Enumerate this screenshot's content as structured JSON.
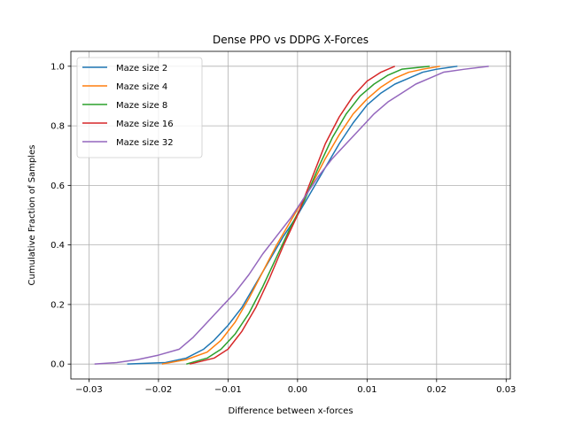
{
  "chart_data": {
    "type": "line",
    "title": "Dense PPO vs DDPG X-Forces",
    "xlabel": "Difference between x-forces",
    "ylabel": "Cumulative Fraction of Samples",
    "xlim": [
      -0.0326,
      0.0306
    ],
    "ylim": [
      -0.05,
      1.05
    ],
    "xticks": [
      -0.03,
      -0.02,
      -0.01,
      0.0,
      0.01,
      0.02,
      0.03
    ],
    "xtick_labels": [
      "−0.03",
      "−0.02",
      "−0.01",
      "0.00",
      "0.01",
      "0.02",
      "0.03"
    ],
    "yticks": [
      0.0,
      0.2,
      0.4,
      0.6,
      0.8,
      1.0
    ],
    "ytick_labels": [
      "0.0",
      "0.2",
      "0.4",
      "0.6",
      "0.8",
      "1.0"
    ],
    "grid": true,
    "legend_position": "upper-left",
    "series": [
      {
        "name": "Maze size 2",
        "color": "#1f77b4",
        "points": [
          [
            -0.0245,
            0.0
          ],
          [
            -0.019,
            0.005
          ],
          [
            -0.016,
            0.02
          ],
          [
            -0.0135,
            0.05
          ],
          [
            -0.012,
            0.08
          ],
          [
            -0.01,
            0.13
          ],
          [
            -0.008,
            0.19
          ],
          [
            -0.006,
            0.27
          ],
          [
            -0.004,
            0.35
          ],
          [
            -0.002,
            0.43
          ],
          [
            0.0,
            0.5
          ],
          [
            0.002,
            0.58
          ],
          [
            0.004,
            0.66
          ],
          [
            0.006,
            0.74
          ],
          [
            0.008,
            0.81
          ],
          [
            0.01,
            0.87
          ],
          [
            0.012,
            0.91
          ],
          [
            0.014,
            0.94
          ],
          [
            0.016,
            0.96
          ],
          [
            0.018,
            0.98
          ],
          [
            0.02,
            0.99
          ],
          [
            0.023,
            1.0
          ]
        ]
      },
      {
        "name": "Maze size 4",
        "color": "#ff7f0e",
        "points": [
          [
            -0.0195,
            0.0
          ],
          [
            -0.016,
            0.015
          ],
          [
            -0.013,
            0.04
          ],
          [
            -0.011,
            0.08
          ],
          [
            -0.009,
            0.14
          ],
          [
            -0.007,
            0.22
          ],
          [
            -0.005,
            0.31
          ],
          [
            -0.003,
            0.4
          ],
          [
            -0.001,
            0.48
          ],
          [
            0.0,
            0.52
          ],
          [
            0.002,
            0.6
          ],
          [
            0.004,
            0.69
          ],
          [
            0.006,
            0.77
          ],
          [
            0.008,
            0.84
          ],
          [
            0.01,
            0.89
          ],
          [
            0.012,
            0.93
          ],
          [
            0.014,
            0.96
          ],
          [
            0.016,
            0.98
          ],
          [
            0.018,
            0.99
          ],
          [
            0.0205,
            1.0
          ]
        ]
      },
      {
        "name": "Maze size 8",
        "color": "#2ca02c",
        "points": [
          [
            -0.016,
            0.0
          ],
          [
            -0.013,
            0.02
          ],
          [
            -0.011,
            0.05
          ],
          [
            -0.009,
            0.1
          ],
          [
            -0.007,
            0.17
          ],
          [
            -0.005,
            0.26
          ],
          [
            -0.003,
            0.36
          ],
          [
            -0.001,
            0.46
          ],
          [
            0.001,
            0.55
          ],
          [
            0.003,
            0.66
          ],
          [
            0.005,
            0.76
          ],
          [
            0.007,
            0.84
          ],
          [
            0.009,
            0.9
          ],
          [
            0.011,
            0.94
          ],
          [
            0.013,
            0.97
          ],
          [
            0.015,
            0.99
          ],
          [
            0.019,
            1.0
          ]
        ]
      },
      {
        "name": "Maze size 16",
        "color": "#d62728",
        "points": [
          [
            -0.0155,
            0.0
          ],
          [
            -0.012,
            0.02
          ],
          [
            -0.01,
            0.05
          ],
          [
            -0.008,
            0.11
          ],
          [
            -0.006,
            0.19
          ],
          [
            -0.004,
            0.29
          ],
          [
            -0.002,
            0.4
          ],
          [
            0.0,
            0.5
          ],
          [
            0.002,
            0.62
          ],
          [
            0.004,
            0.74
          ],
          [
            0.006,
            0.83
          ],
          [
            0.008,
            0.9
          ],
          [
            0.01,
            0.95
          ],
          [
            0.012,
            0.98
          ],
          [
            0.014,
            1.0
          ]
        ]
      },
      {
        "name": "Maze size 32",
        "color": "#9467bd",
        "points": [
          [
            -0.0292,
            0.0
          ],
          [
            -0.026,
            0.005
          ],
          [
            -0.023,
            0.015
          ],
          [
            -0.02,
            0.03
          ],
          [
            -0.017,
            0.05
          ],
          [
            -0.015,
            0.09
          ],
          [
            -0.013,
            0.14
          ],
          [
            -0.011,
            0.19
          ],
          [
            -0.009,
            0.24
          ],
          [
            -0.007,
            0.3
          ],
          [
            -0.005,
            0.37
          ],
          [
            -0.003,
            0.43
          ],
          [
            -0.001,
            0.49
          ],
          [
            0.001,
            0.56
          ],
          [
            0.003,
            0.63
          ],
          [
            0.005,
            0.69
          ],
          [
            0.007,
            0.74
          ],
          [
            0.009,
            0.79
          ],
          [
            0.011,
            0.84
          ],
          [
            0.013,
            0.88
          ],
          [
            0.015,
            0.91
          ],
          [
            0.017,
            0.94
          ],
          [
            0.019,
            0.96
          ],
          [
            0.021,
            0.98
          ],
          [
            0.024,
            0.99
          ],
          [
            0.0275,
            1.0
          ]
        ]
      }
    ]
  }
}
